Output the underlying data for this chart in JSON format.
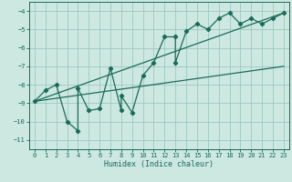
{
  "xlabel": "Humidex (Indice chaleur)",
  "bg_color": "#cce8e0",
  "grid_color": "#9dc8c0",
  "line_color": "#1a6b5a",
  "xlim": [
    -0.5,
    23.5
  ],
  "ylim": [
    -11.5,
    -3.5
  ],
  "xticks": [
    0,
    1,
    2,
    3,
    4,
    5,
    6,
    7,
    8,
    9,
    10,
    11,
    12,
    13,
    14,
    15,
    16,
    17,
    18,
    19,
    20,
    21,
    22,
    23
  ],
  "yticks": [
    -11,
    -10,
    -9,
    -8,
    -7,
    -6,
    -5,
    -4
  ],
  "data_x": [
    0,
    1,
    2,
    3,
    4,
    4,
    5,
    6,
    7,
    8,
    8,
    9,
    10,
    11,
    12,
    13,
    13,
    14,
    15,
    16,
    17,
    18,
    19,
    20,
    21,
    22,
    23
  ],
  "data_y": [
    -8.9,
    -8.3,
    -8.0,
    -10.0,
    -10.5,
    -8.2,
    -9.4,
    -9.3,
    -7.1,
    -9.4,
    -8.6,
    -9.5,
    -7.5,
    -6.8,
    -5.4,
    -5.4,
    -6.8,
    -5.1,
    -4.7,
    -5.0,
    -4.4,
    -4.1,
    -4.7,
    -4.4,
    -4.7,
    -4.4,
    -4.1
  ],
  "line1_x": [
    0,
    23
  ],
  "line1_y": [
    -8.9,
    -4.1
  ],
  "line2_x": [
    0,
    23
  ],
  "line2_y": [
    -8.9,
    -7.0
  ]
}
